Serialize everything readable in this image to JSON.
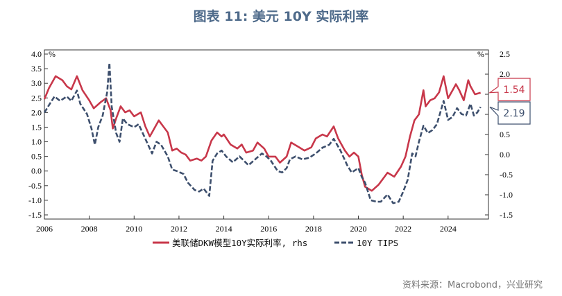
{
  "title": "图表 11: 美元 10Y 实际利率",
  "source": "资料来源：Macrobond，兴业研究",
  "chart_data": {
    "type": "line",
    "x_ticks": [
      "2006",
      "2008",
      "2010",
      "2012",
      "2014",
      "2016",
      "2018",
      "2020",
      "2022",
      "2024"
    ],
    "xlim": [
      2006.0,
      2025.8
    ],
    "left_axis": {
      "unit": "%",
      "ylim": [
        -1.5,
        4.0
      ],
      "ticks": [
        "4.0",
        "3.5",
        "3.0",
        "2.5",
        "2.0",
        "1.5",
        "1.0",
        "0.5",
        "0.0",
        "-0.5",
        "-1.0",
        "-1.5"
      ]
    },
    "right_axis": {
      "unit": "%",
      "ylim": [
        -1.5,
        2.5
      ],
      "ticks": [
        "2.5",
        "2.0",
        "1.5",
        "1.0",
        "0.5",
        "0.0",
        "-0.5",
        "-1.0",
        "-1.5"
      ]
    },
    "series": [
      {
        "name": "美联储DKW模型10Y实际利率, rhs",
        "axis": "right",
        "color": "#c8374a",
        "style": "solid",
        "last_value_label": "1.54",
        "points": [
          [
            2006.0,
            1.38
          ],
          [
            2006.2,
            1.65
          ],
          [
            2006.5,
            1.95
          ],
          [
            2006.8,
            1.85
          ],
          [
            2007.0,
            1.7
          ],
          [
            2007.2,
            1.62
          ],
          [
            2007.45,
            1.95
          ],
          [
            2007.7,
            1.6
          ],
          [
            2008.0,
            1.35
          ],
          [
            2008.2,
            1.15
          ],
          [
            2008.5,
            1.3
          ],
          [
            2008.75,
            1.4
          ],
          [
            2008.95,
            1.1
          ],
          [
            2009.05,
            0.65
          ],
          [
            2009.2,
            0.9
          ],
          [
            2009.4,
            1.2
          ],
          [
            2009.6,
            1.05
          ],
          [
            2009.8,
            1.1
          ],
          [
            2010.0,
            0.95
          ],
          [
            2010.3,
            1.05
          ],
          [
            2010.5,
            0.7
          ],
          [
            2010.7,
            0.45
          ],
          [
            2010.9,
            0.65
          ],
          [
            2011.1,
            0.85
          ],
          [
            2011.3,
            0.7
          ],
          [
            2011.5,
            0.55
          ],
          [
            2011.7,
            0.1
          ],
          [
            2011.9,
            0.15
          ],
          [
            2012.1,
            0.05
          ],
          [
            2012.3,
            0.0
          ],
          [
            2012.5,
            -0.15
          ],
          [
            2012.8,
            -0.1
          ],
          [
            2013.0,
            -0.15
          ],
          [
            2013.2,
            -0.05
          ],
          [
            2013.45,
            0.35
          ],
          [
            2013.7,
            0.55
          ],
          [
            2013.9,
            0.45
          ],
          [
            2014.0,
            0.5
          ],
          [
            2014.3,
            0.25
          ],
          [
            2014.6,
            0.15
          ],
          [
            2014.8,
            0.25
          ],
          [
            2015.0,
            0.05
          ],
          [
            2015.3,
            0.1
          ],
          [
            2015.5,
            0.3
          ],
          [
            2015.8,
            0.15
          ],
          [
            2016.0,
            -0.05
          ],
          [
            2016.3,
            -0.05
          ],
          [
            2016.5,
            -0.2
          ],
          [
            2016.8,
            -0.05
          ],
          [
            2017.0,
            0.3
          ],
          [
            2017.3,
            0.2
          ],
          [
            2017.6,
            0.1
          ],
          [
            2017.9,
            0.18
          ],
          [
            2018.1,
            0.4
          ],
          [
            2018.4,
            0.5
          ],
          [
            2018.6,
            0.45
          ],
          [
            2018.9,
            0.7
          ],
          [
            2019.1,
            0.4
          ],
          [
            2019.4,
            0.1
          ],
          [
            2019.6,
            -0.05
          ],
          [
            2019.8,
            0.05
          ],
          [
            2020.0,
            -0.05
          ],
          [
            2020.15,
            -0.5
          ],
          [
            2020.3,
            -0.8
          ],
          [
            2020.6,
            -0.9
          ],
          [
            2020.9,
            -0.75
          ],
          [
            2021.1,
            -0.6
          ],
          [
            2021.3,
            -0.45
          ],
          [
            2021.6,
            -0.55
          ],
          [
            2021.9,
            -0.3
          ],
          [
            2022.1,
            -0.05
          ],
          [
            2022.3,
            0.45
          ],
          [
            2022.5,
            0.85
          ],
          [
            2022.7,
            1.0
          ],
          [
            2022.9,
            1.6
          ],
          [
            2023.0,
            1.2
          ],
          [
            2023.2,
            1.35
          ],
          [
            2023.4,
            1.4
          ],
          [
            2023.6,
            1.55
          ],
          [
            2023.8,
            1.95
          ],
          [
            2024.0,
            1.4
          ],
          [
            2024.2,
            1.6
          ],
          [
            2024.35,
            1.75
          ],
          [
            2024.5,
            1.6
          ],
          [
            2024.7,
            1.35
          ],
          [
            2024.9,
            1.85
          ],
          [
            2025.0,
            1.7
          ],
          [
            2025.2,
            1.5
          ],
          [
            2025.45,
            1.54
          ]
        ]
      },
      {
        "name": "10Y TIPS",
        "axis": "left",
        "color": "#3d4f6d",
        "style": "dashed",
        "last_value_label": "2.19",
        "points": [
          [
            2006.0,
            2.0
          ],
          [
            2006.2,
            2.25
          ],
          [
            2006.45,
            2.55
          ],
          [
            2006.7,
            2.4
          ],
          [
            2007.0,
            2.55
          ],
          [
            2007.2,
            2.4
          ],
          [
            2007.45,
            2.75
          ],
          [
            2007.6,
            2.3
          ],
          [
            2007.9,
            1.95
          ],
          [
            2008.1,
            1.45
          ],
          [
            2008.25,
            0.9
          ],
          [
            2008.4,
            1.5
          ],
          [
            2008.6,
            1.9
          ],
          [
            2008.8,
            2.7
          ],
          [
            2008.9,
            3.7
          ],
          [
            2009.0,
            2.2
          ],
          [
            2009.2,
            1.3
          ],
          [
            2009.35,
            1.0
          ],
          [
            2009.5,
            1.8
          ],
          [
            2009.7,
            1.6
          ],
          [
            2010.0,
            1.5
          ],
          [
            2010.2,
            1.6
          ],
          [
            2010.5,
            1.1
          ],
          [
            2010.8,
            0.6
          ],
          [
            2011.0,
            1.0
          ],
          [
            2011.2,
            0.9
          ],
          [
            2011.5,
            0.5
          ],
          [
            2011.7,
            0.05
          ],
          [
            2011.9,
            0.0
          ],
          [
            2012.2,
            -0.1
          ],
          [
            2012.4,
            -0.4
          ],
          [
            2012.7,
            -0.65
          ],
          [
            2012.9,
            -0.7
          ],
          [
            2013.1,
            -0.6
          ],
          [
            2013.35,
            -0.85
          ],
          [
            2013.5,
            0.35
          ],
          [
            2013.7,
            0.6
          ],
          [
            2013.9,
            0.7
          ],
          [
            2014.1,
            0.5
          ],
          [
            2014.4,
            0.3
          ],
          [
            2014.7,
            0.5
          ],
          [
            2014.9,
            0.35
          ],
          [
            2015.1,
            0.2
          ],
          [
            2015.4,
            0.4
          ],
          [
            2015.7,
            0.6
          ],
          [
            2015.9,
            0.5
          ],
          [
            2016.1,
            0.35
          ],
          [
            2016.4,
            0.0
          ],
          [
            2016.6,
            -0.05
          ],
          [
            2016.8,
            0.1
          ],
          [
            2016.95,
            0.4
          ],
          [
            2017.2,
            0.5
          ],
          [
            2017.5,
            0.4
          ],
          [
            2017.8,
            0.45
          ],
          [
            2018.1,
            0.6
          ],
          [
            2018.4,
            0.8
          ],
          [
            2018.7,
            0.9
          ],
          [
            2018.9,
            1.1
          ],
          [
            2019.2,
            0.7
          ],
          [
            2019.5,
            0.2
          ],
          [
            2019.7,
            -0.05
          ],
          [
            2020.0,
            0.1
          ],
          [
            2020.15,
            -0.2
          ],
          [
            2020.3,
            -0.4
          ],
          [
            2020.55,
            -1.0
          ],
          [
            2020.8,
            -1.05
          ],
          [
            2021.0,
            -1.05
          ],
          [
            2021.3,
            -0.8
          ],
          [
            2021.55,
            -1.1
          ],
          [
            2021.8,
            -1.05
          ],
          [
            2022.0,
            -0.7
          ],
          [
            2022.2,
            -0.3
          ],
          [
            2022.4,
            0.6
          ],
          [
            2022.55,
            0.5
          ],
          [
            2022.7,
            1.0
          ],
          [
            2022.9,
            1.55
          ],
          [
            2023.1,
            1.3
          ],
          [
            2023.3,
            1.4
          ],
          [
            2023.5,
            1.6
          ],
          [
            2023.8,
            2.4
          ],
          [
            2024.0,
            1.75
          ],
          [
            2024.2,
            1.85
          ],
          [
            2024.4,
            2.15
          ],
          [
            2024.6,
            1.95
          ],
          [
            2024.8,
            1.9
          ],
          [
            2025.0,
            2.3
          ],
          [
            2025.15,
            1.9
          ],
          [
            2025.3,
            2.0
          ],
          [
            2025.45,
            2.19
          ]
        ]
      }
    ],
    "legend_placement": "bottom-center",
    "grid": false
  }
}
